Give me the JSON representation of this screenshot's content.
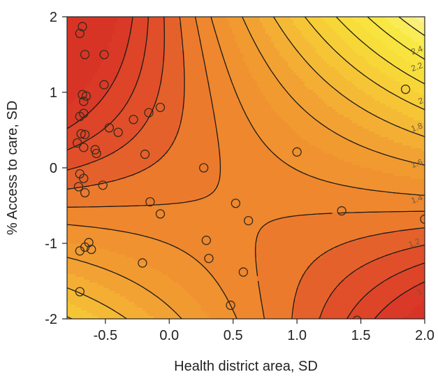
{
  "chart_data": {
    "type": "contour",
    "title": "",
    "xlabel": "Health district area, SD",
    "ylabel": "% Access to care, SD",
    "xlim": [
      -0.8,
      2.0
    ],
    "ylim": [
      -2.0,
      2.0
    ],
    "x_ticks": [
      "-0.5",
      "0.0",
      "0.5",
      "1.0",
      "1.5",
      "2.0"
    ],
    "x_tick_values": [
      -0.5,
      0.0,
      0.5,
      1.0,
      1.5,
      2.0
    ],
    "y_ticks": [
      "-2",
      "-1",
      "0",
      "1",
      "2"
    ],
    "y_tick_values": [
      -2,
      -1,
      0,
      1,
      2
    ],
    "contour_levels": [
      0.7,
      0.8,
      0.9,
      1.0,
      1.1,
      1.2,
      1.4,
      1.6,
      1.8,
      2.0,
      2.2,
      2.4,
      2.6
    ],
    "contour_labels": [
      {
        "text": "2.4",
        "x": 1.94,
        "y": 1.55
      },
      {
        "text": "2.2",
        "x": 1.94,
        "y": 1.33
      },
      {
        "text": "2",
        "x": 1.97,
        "y": 0.88
      },
      {
        "text": "1.8",
        "x": 1.94,
        "y": 0.53
      },
      {
        "text": "1.6",
        "x": 1.94,
        "y": 0.05
      },
      {
        "text": "1.4",
        "x": 1.94,
        "y": -0.42
      },
      {
        "text": "1.2",
        "x": 1.92,
        "y": -1.0
      },
      {
        "text": "1",
        "x": 1.96,
        "y": -1.65
      }
    ],
    "colors": {
      "low": "#d83a2a",
      "mid": "#ee8b2a",
      "high": "#f7ec3a",
      "top": "#fbf3c0",
      "contour": "#1a1a1a",
      "point": "#3a2a1a"
    },
    "points": [
      {
        "x": -0.68,
        "y": 1.87
      },
      {
        "x": -0.7,
        "y": 1.78
      },
      {
        "x": -0.66,
        "y": 1.5
      },
      {
        "x": -0.51,
        "y": 1.5
      },
      {
        "x": -0.51,
        "y": 1.1
      },
      {
        "x": -0.68,
        "y": 0.97
      },
      {
        "x": -0.65,
        "y": 0.95
      },
      {
        "x": -0.67,
        "y": 0.88
      },
      {
        "x": -0.67,
        "y": 0.72
      },
      {
        "x": -0.7,
        "y": 0.68
      },
      {
        "x": -0.47,
        "y": 0.53
      },
      {
        "x": -0.4,
        "y": 0.47
      },
      {
        "x": -0.69,
        "y": 0.45
      },
      {
        "x": -0.66,
        "y": 0.44
      },
      {
        "x": -0.72,
        "y": 0.33
      },
      {
        "x": -0.67,
        "y": 0.27
      },
      {
        "x": -0.58,
        "y": 0.24
      },
      {
        "x": -0.57,
        "y": 0.19
      },
      {
        "x": -0.28,
        "y": 0.64
      },
      {
        "x": -0.16,
        "y": 0.73
      },
      {
        "x": -0.07,
        "y": 0.8
      },
      {
        "x": -0.19,
        "y": 0.18
      },
      {
        "x": -0.7,
        "y": -0.08
      },
      {
        "x": -0.67,
        "y": -0.14
      },
      {
        "x": -0.71,
        "y": -0.25
      },
      {
        "x": -0.66,
        "y": -0.33
      },
      {
        "x": -0.52,
        "y": -0.23
      },
      {
        "x": -0.15,
        "y": -0.45
      },
      {
        "x": -0.07,
        "y": -0.61
      },
      {
        "x": 0.27,
        "y": 0.0
      },
      {
        "x": -0.63,
        "y": -0.99
      },
      {
        "x": -0.66,
        "y": -1.05
      },
      {
        "x": -0.61,
        "y": -1.08
      },
      {
        "x": -0.7,
        "y": -1.1
      },
      {
        "x": -0.21,
        "y": -1.26
      },
      {
        "x": 0.29,
        "y": -0.96
      },
      {
        "x": 0.31,
        "y": -1.2
      },
      {
        "x": 0.52,
        "y": -0.47
      },
      {
        "x": 0.62,
        "y": -0.7
      },
      {
        "x": 0.58,
        "y": -1.38
      },
      {
        "x": 0.48,
        "y": -1.82
      },
      {
        "x": 1.0,
        "y": 0.21
      },
      {
        "x": 1.35,
        "y": -0.57
      },
      {
        "x": 1.85,
        "y": 1.04
      },
      {
        "x": -0.7,
        "y": -1.64
      },
      {
        "x": 1.47,
        "y": -2.02
      },
      {
        "x": 2.0,
        "y": -0.68
      }
    ]
  }
}
